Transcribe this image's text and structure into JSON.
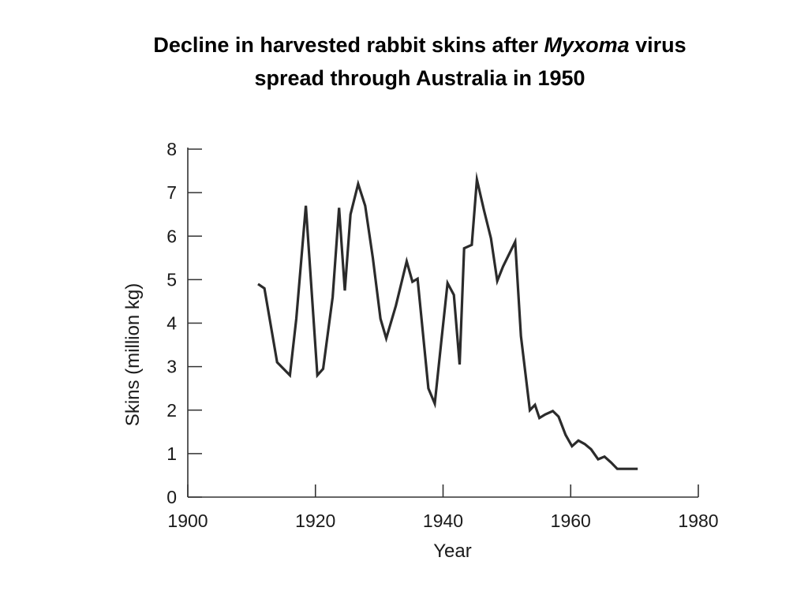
{
  "slide": {
    "title_before": "Decline in harvested rabbit skins after ",
    "title_italic": "Myxoma",
    "title_after": " virus",
    "title_line2": "spread through Australia in 1950"
  },
  "colors": {
    "line": "#2b2b2b",
    "axis": "#333333",
    "background": "#ffffff"
  },
  "chart_data": {
    "type": "line",
    "title": "Decline in harvested rabbit skins after Myxoma virus spread through Australia in 1950",
    "xlabel": "Year",
    "ylabel": "Skins (million kg)",
    "xlim": [
      1900,
      1980
    ],
    "ylim": [
      0,
      8
    ],
    "xticks": [
      1900,
      1920,
      1940,
      1960,
      1980
    ],
    "yticks": [
      0,
      1,
      2,
      3,
      4,
      5,
      6,
      7,
      8
    ],
    "grid": false,
    "legend": "none",
    "series": [
      {
        "x": [
          1911,
          1912,
          1914,
          1916,
          1917,
          1918.5,
          1920.3,
          1921.2,
          1922.7,
          1923.7,
          1924.6,
          1925.5,
          1926.7,
          1927.8,
          1929,
          1930.2,
          1931.1,
          1932.6,
          1934.3,
          1935.2,
          1936,
          1937.7,
          1938.7,
          1939.7,
          1940.7,
          1941.7,
          1942.6,
          1943.3,
          1944.5,
          1945.3,
          1946.4,
          1947.5,
          1948.5,
          1949.4,
          1951.3,
          1952.2,
          1953.6,
          1954.4,
          1955.1,
          1956,
          1957.2,
          1958.1,
          1959.2,
          1960.2,
          1961.2,
          1962.2,
          1963.2,
          1964.3,
          1965.3,
          1966.3,
          1967.3,
          1968.3,
          1969.3,
          1970.5
        ],
        "y": [
          4.9,
          4.8,
          3.1,
          2.8,
          4.1,
          6.7,
          2.8,
          2.95,
          4.6,
          6.65,
          4.75,
          6.5,
          7.2,
          6.7,
          5.5,
          4.1,
          3.65,
          4.4,
          5.42,
          4.95,
          5.02,
          2.5,
          2.15,
          3.55,
          4.92,
          4.65,
          3.05,
          5.72,
          5.8,
          7.3,
          6.6,
          5.95,
          4.97,
          5.3,
          5.87,
          3.7,
          2.0,
          2.12,
          1.82,
          1.9,
          1.98,
          1.85,
          1.43,
          1.17,
          1.3,
          1.22,
          1.1,
          0.87,
          0.93,
          0.8,
          0.65,
          0.65,
          0.65,
          0.65
        ]
      }
    ]
  }
}
